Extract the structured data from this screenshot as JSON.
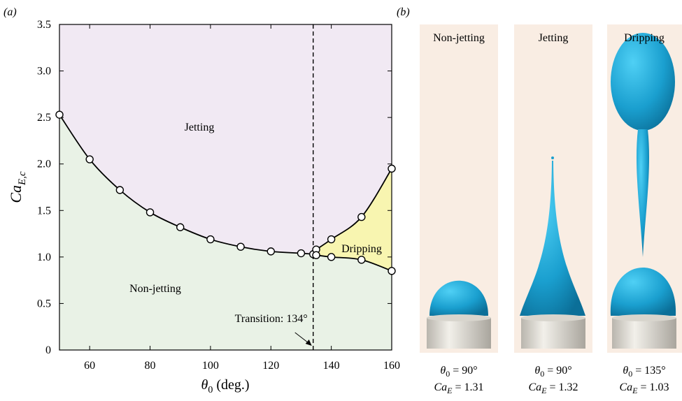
{
  "chart_data": {
    "type": "scatter-line",
    "panel_label": "(a)",
    "xlabel": {
      "symbol": "θ",
      "sub": "0",
      "suffix": " (deg.)"
    },
    "ylabel": {
      "symbol": "Ca",
      "sub": "E,c"
    },
    "xlim": [
      50,
      160
    ],
    "xticks": [
      60,
      80,
      100,
      120,
      140,
      160
    ],
    "ylim": [
      0,
      3.5
    ],
    "yticks": [
      0,
      0.5,
      {
        "value": 1,
        "label": "1.0"
      },
      1.5,
      {
        "value": 2,
        "label": "2.0"
      },
      2.5,
      {
        "value": 3,
        "label": "3.0"
      },
      3.5
    ],
    "series": [
      {
        "color": "#000000",
        "x": [
          50,
          60,
          70,
          80,
          90,
          100,
          110,
          120,
          130,
          134
        ],
        "values": [
          2.53,
          2.05,
          1.72,
          1.48,
          1.32,
          1.19,
          1.11,
          1.06,
          1.04,
          1.03
        ]
      },
      {
        "color": "#000000",
        "x": [
          135,
          140,
          150,
          160
        ],
        "values": [
          1.08,
          1.19,
          1.43,
          1.95
        ]
      },
      {
        "color": "#000000",
        "x": [
          135,
          140,
          150,
          160
        ],
        "values": [
          1.02,
          1.0,
          0.97,
          0.85
        ]
      }
    ],
    "regions": [
      {
        "label": "Jetting",
        "color": "#f1e9f3"
      },
      {
        "label": "Non-jetting",
        "color": "#e9f2e6"
      },
      {
        "label": "Dripping",
        "color": "#f8f5b0"
      }
    ],
    "annotation": {
      "text": "Transition: 134°",
      "x": 134
    }
  },
  "panel_b": {
    "label": "(b)",
    "panels": [
      {
        "title": "Non-jetting",
        "theta": {
          "symbol": "θ",
          "sub": "0",
          "text": " = 90°"
        },
        "ca": {
          "symbol": "Ca",
          "sub": "E",
          "text": " = 1.31"
        }
      },
      {
        "title": "Jetting",
        "theta": {
          "symbol": "θ",
          "sub": "0",
          "text": " = 90°"
        },
        "ca": {
          "symbol": "Ca",
          "sub": "E",
          "text": " = 1.32"
        }
      },
      {
        "title": "Dripping",
        "theta": {
          "symbol": "θ",
          "sub": "0",
          "text": " = 135°"
        },
        "ca": {
          "symbol": "Ca",
          "sub": "E",
          "text": " = 1.03"
        }
      }
    ]
  }
}
